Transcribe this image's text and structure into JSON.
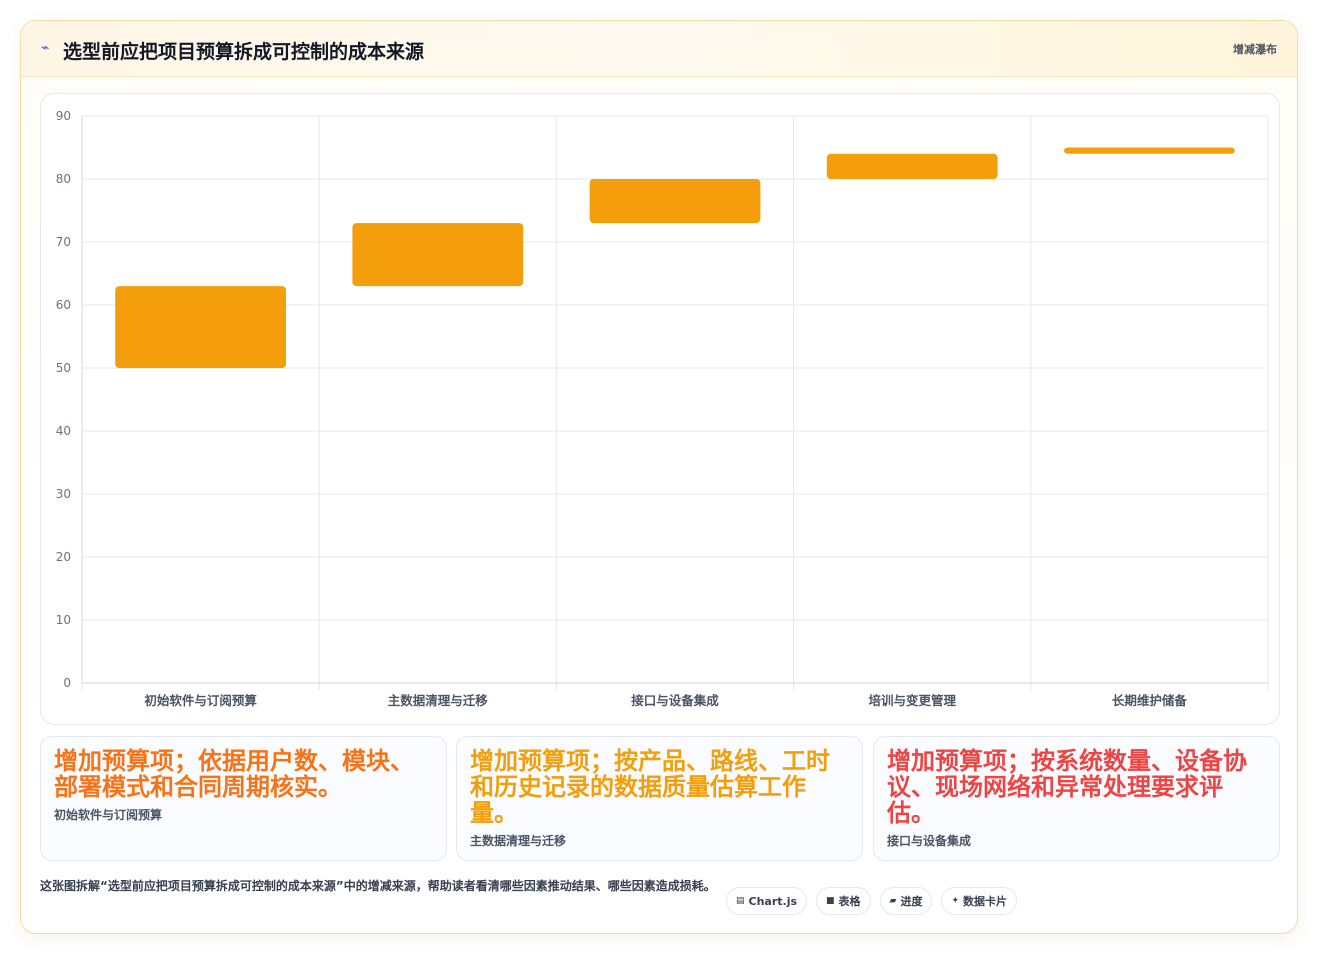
{
  "header": {
    "title_icon": "lightning-icon",
    "title": "选型前应把项目预算拆成可控制的成本来源",
    "tag": "增减瀑布"
  },
  "chart_data": {
    "type": "bar",
    "subtype": "floating-waterfall",
    "categories": [
      "初始软件与订阅预算",
      "主数据清理与迁移",
      "接口与设备集成",
      "培训与变更管理",
      "长期维护储备"
    ],
    "ranges": [
      [
        50,
        63
      ],
      [
        63,
        73
      ],
      [
        73,
        80
      ],
      [
        80,
        84
      ],
      [
        84,
        85
      ]
    ],
    "ylim": [
      0,
      90
    ],
    "yticks": [
      0,
      10,
      20,
      30,
      40,
      50,
      60,
      70,
      80,
      90
    ],
    "grid": true,
    "bar_color": "#f59e0b"
  },
  "notes": [
    {
      "text": "增加预算项；依据用户数、模块、部署模式和合同周期核实。",
      "label": "初始软件与订阅预算",
      "color": "#f97316"
    },
    {
      "text": "增加预算项；按产品、路线、工时和历史记录的数据质量估算工作量。",
      "label": "主数据清理与迁移",
      "color": "#f59e0b"
    },
    {
      "text": "增加预算项；按系统数量、设备协议、现场网络和异常处理要求评估。",
      "label": "接口与设备集成",
      "color": "#ef4444"
    }
  ],
  "footer": {
    "text": "这张图拆解“选型前应把项目预算拆成可控制的成本来源”中的增减来源，帮助读者看清哪些因素推动结果、哪些因素造成损耗。",
    "chips": [
      {
        "icon": "chart-icon",
        "glyph": "▤",
        "label": "Chart.js"
      },
      {
        "icon": "table-icon",
        "glyph": "■",
        "label": "表格"
      },
      {
        "icon": "progress-icon",
        "glyph": "▰",
        "label": "进度"
      },
      {
        "icon": "sparkle-icon",
        "glyph": "✦",
        "label": "数据卡片"
      }
    ]
  }
}
